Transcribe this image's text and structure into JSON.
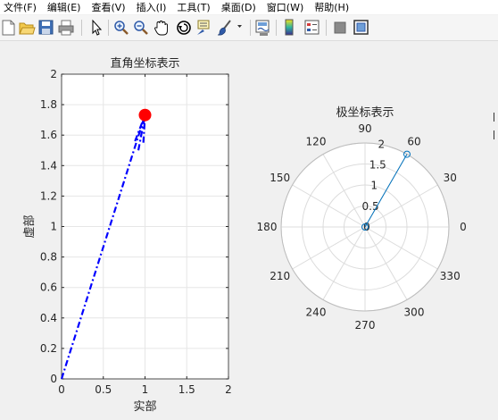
{
  "menu": {
    "items": [
      "文件(F)",
      "编辑(E)",
      "查看(V)",
      "插入(I)",
      "工具(T)",
      "桌面(D)",
      "窗口(W)",
      "帮助(H)"
    ]
  },
  "toolbar": {
    "icons": [
      "new-file-icon",
      "open-folder-icon",
      "save-icon",
      "print-icon",
      "pointer-icon",
      "zoom-in-icon",
      "zoom-out-icon",
      "pan-hand-icon",
      "rotate-3d-icon",
      "data-cursor-icon",
      "brush-icon",
      "brush-dropdown-icon",
      "link-plot-icon",
      "insert-colorbar-icon",
      "insert-legend-icon",
      "hide-plot-tools-icon",
      "show-plot-tools-icon"
    ]
  },
  "chart_data": [
    {
      "type": "line",
      "title": "直角坐标表示",
      "xlabel": "实部",
      "ylabel": "虚部",
      "xlim": [
        0,
        2
      ],
      "ylim": [
        0,
        2
      ],
      "xticks": [
        "0",
        "0.5",
        "1",
        "1.5",
        "2"
      ],
      "yticks": [
        "0",
        "0.2",
        "0.4",
        "0.6",
        "0.8",
        "1",
        "1.2",
        "1.4",
        "1.6",
        "1.8",
        "2"
      ],
      "grid": true,
      "series": [
        {
          "style": "dash-dot",
          "color": "#0000ff",
          "x": [
            0,
            1
          ],
          "y": [
            0,
            1.732
          ]
        },
        {
          "style": "arrowhead",
          "color": "#0000ff",
          "x": [
            0.92,
            1,
            0.98
          ],
          "y": [
            1.5,
            1.732,
            1.55
          ]
        },
        {
          "style": "marker",
          "color": "#ff0000",
          "x": [
            1
          ],
          "y": [
            1.732
          ]
        }
      ]
    },
    {
      "type": "polar",
      "title": "极坐标表示",
      "rlim": [
        0,
        2
      ],
      "rticks": [
        "0",
        "0.5",
        "1",
        "1.5",
        "2"
      ],
      "theta_ticks": [
        "0",
        "30",
        "60",
        "90",
        "120",
        "150",
        "180",
        "210",
        "240",
        "270",
        "300",
        "330"
      ],
      "grid": true,
      "series": [
        {
          "color": "#0072bd",
          "theta_deg": [
            0,
            60
          ],
          "r": [
            0,
            2
          ],
          "marker": "circle"
        }
      ]
    }
  ]
}
